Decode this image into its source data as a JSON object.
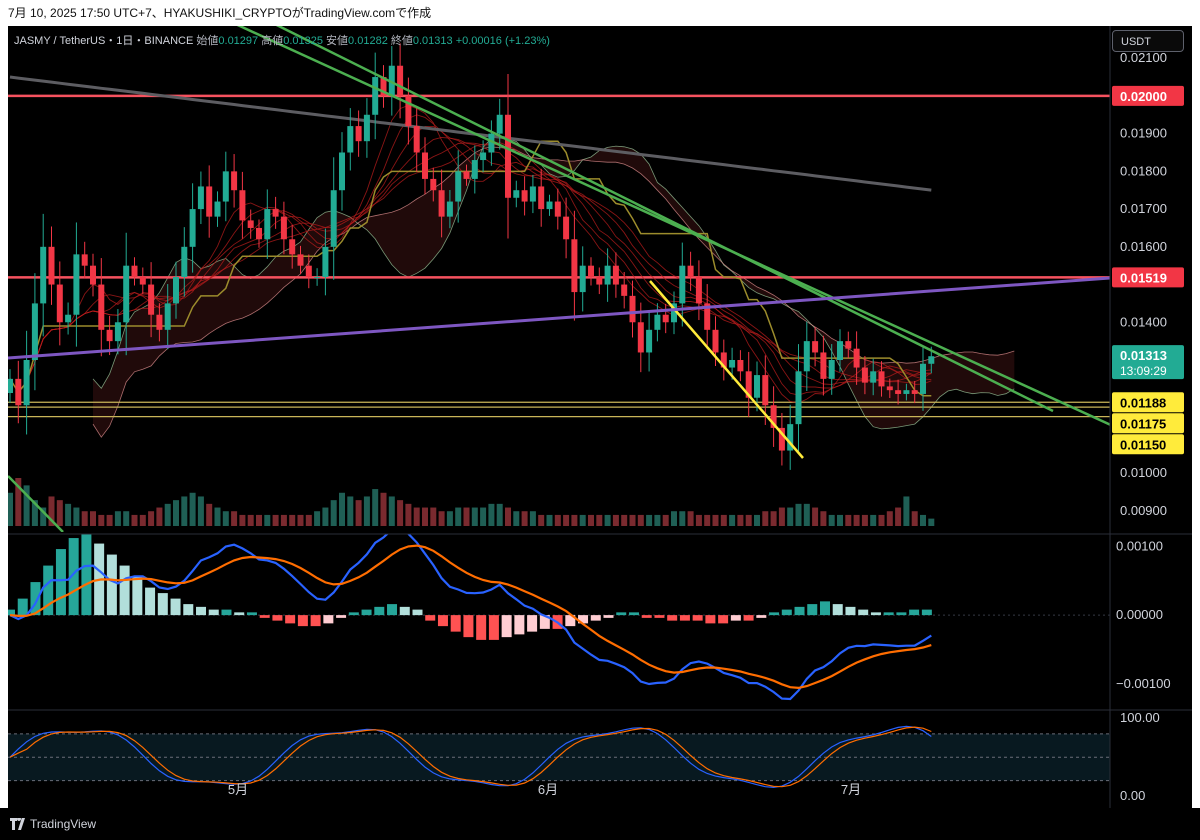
{
  "caption": "7月 10, 2025 17:50 UTC+7、HYAKUSHIKI_CRYPTOがTradingView.comで作成",
  "legend": {
    "symbol": "JASMY / TetherUS・1日・BINANCE",
    "open_label": "始値",
    "open": "0.01297",
    "high_label": "高値",
    "high": "0.01325",
    "low_label": "安値",
    "low": "0.01282",
    "close_label": "終値",
    "close": "0.01313",
    "change": "+0.00016 (+1.23%)"
  },
  "currency_button": "USDT",
  "footer_brand": "TradingView",
  "colors": {
    "up": "#22ab94",
    "down": "#f23645",
    "horizontal_red": "#f7525f",
    "horizontal_yellow": "#c9b458",
    "trend_green": "#4caf50",
    "trend_yellow": "#ffeb3b",
    "trend_purple": "#7e57c2",
    "ma_gray": "#5d5d62",
    "macd_line": "#2962ff",
    "signal_line": "#ff6d00"
  },
  "chart_data": [
    {
      "type": "candlestick",
      "pane": "price",
      "x_ticks": [
        "5月",
        "6月",
        "7月"
      ],
      "y_ticks": [
        "0.02100",
        "0.01900",
        "0.01800",
        "0.01700",
        "0.01600",
        "0.01400",
        "0.01000",
        "0.00900"
      ],
      "y_range": [
        0.0086,
        0.0218
      ],
      "price_tags": [
        {
          "label": "0.02000",
          "value": 0.02,
          "color": "#f23645"
        },
        {
          "label": "0.01519",
          "value": 0.01519,
          "color": "#f23645"
        },
        {
          "label": "0.01313",
          "value": 0.01313,
          "color": "#22ab94",
          "sub": "13:09:29"
        },
        {
          "label": "0.01188",
          "value": 0.01188,
          "color": "#ffeb3b"
        },
        {
          "label": "0.01175",
          "value": 0.01175,
          "color": "#ffeb3b"
        },
        {
          "label": "0.01150",
          "value": 0.0115,
          "color": "#ffeb3b"
        }
      ],
      "horizontal_lines": [
        {
          "value": 0.02,
          "color": "#f7525f"
        },
        {
          "value": 0.01519,
          "color": "#f7525f"
        },
        {
          "value": 0.01188,
          "color": "#c9b458"
        },
        {
          "value": 0.01175,
          "color": "#c9b458"
        },
        {
          "value": 0.0115,
          "color": "#c9b458"
        }
      ],
      "closes": [
        0.0125,
        0.0118,
        0.013,
        0.0145,
        0.016,
        0.015,
        0.014,
        0.0142,
        0.0158,
        0.0155,
        0.015,
        0.0138,
        0.0135,
        0.014,
        0.0155,
        0.0152,
        0.015,
        0.0142,
        0.0138,
        0.0145,
        0.0152,
        0.016,
        0.017,
        0.0176,
        0.0168,
        0.0172,
        0.018,
        0.0175,
        0.0167,
        0.0165,
        0.0162,
        0.017,
        0.0168,
        0.0162,
        0.0158,
        0.0155,
        0.0152,
        0.0152,
        0.016,
        0.0175,
        0.0185,
        0.0192,
        0.0188,
        0.0195,
        0.0205,
        0.02,
        0.0208,
        0.02,
        0.0192,
        0.0185,
        0.0178,
        0.0175,
        0.0168,
        0.0172,
        0.018,
        0.0178,
        0.0183,
        0.0185,
        0.019,
        0.0195,
        0.0173,
        0.0175,
        0.0172,
        0.0176,
        0.017,
        0.0172,
        0.0168,
        0.0162,
        0.0148,
        0.0155,
        0.0152,
        0.015,
        0.0155,
        0.015,
        0.0147,
        0.014,
        0.0132,
        0.0138,
        0.0142,
        0.014,
        0.0145,
        0.0155,
        0.0152,
        0.0145,
        0.0138,
        0.0132,
        0.0128,
        0.013,
        0.0127,
        0.012,
        0.0126,
        0.0118,
        0.0112,
        0.0106,
        0.0113,
        0.0127,
        0.0135,
        0.0132,
        0.0125,
        0.013,
        0.0135,
        0.0133,
        0.0128,
        0.0124,
        0.0127,
        0.0123,
        0.0122,
        0.0121,
        0.0122,
        0.0121,
        0.0129,
        0.0131
      ]
    },
    {
      "type": "bar",
      "pane": "volume",
      "values": [
        9,
        13,
        11,
        7,
        5,
        8,
        7,
        6,
        5,
        4,
        4,
        3,
        3,
        4,
        4,
        3,
        3,
        4,
        5,
        6,
        7,
        8,
        9,
        8,
        6,
        5,
        4,
        4,
        3,
        3,
        3,
        3,
        3,
        3,
        3,
        3,
        3,
        4,
        5,
        7,
        9,
        8,
        7,
        8,
        10,
        9,
        8,
        7,
        6,
        5,
        5,
        5,
        4,
        4,
        5,
        5,
        5,
        5,
        6,
        6,
        5,
        4,
        4,
        4,
        3,
        3,
        3,
        3,
        3,
        3,
        3,
        3,
        3,
        3,
        3,
        3,
        3,
        3,
        3,
        3,
        4,
        4,
        4,
        3,
        3,
        3,
        3,
        3,
        3,
        3,
        3,
        4,
        4,
        5,
        5,
        6,
        6,
        5,
        4,
        3,
        3,
        3,
        3,
        3,
        3,
        3,
        4,
        5,
        8,
        4,
        3,
        2
      ]
    },
    {
      "type": "bar",
      "pane": "macd",
      "y_ticks": [
        "0.00100",
        "0.00000",
        "−0.00100"
      ],
      "y_range": [
        -0.00135,
        0.00115
      ],
      "histogram": [
        2,
        6,
        12,
        18,
        24,
        28,
        30,
        26,
        22,
        18,
        14,
        10,
        8,
        6,
        4,
        3,
        2,
        2,
        1,
        1,
        -1,
        -2,
        -3,
        -4,
        -4,
        -3,
        -1,
        1,
        2,
        3,
        4,
        3,
        2,
        -2,
        -4,
        -6,
        -8,
        -9,
        -9,
        -8,
        -7,
        -6,
        -5,
        -5,
        -4,
        -3,
        -2,
        -1,
        1,
        1,
        -1,
        -1,
        -2,
        -2,
        -2,
        -3,
        -3,
        -2,
        -2,
        -1,
        1,
        2,
        3,
        4,
        5,
        4,
        3,
        2,
        1,
        1,
        1,
        2,
        2
      ]
    },
    {
      "type": "line",
      "pane": "macd",
      "series_points": 90
    },
    {
      "type": "line",
      "pane": "stoch",
      "y_ticks": [
        "100.00",
        "0.00"
      ],
      "y_range": [
        -10,
        108
      ]
    }
  ]
}
